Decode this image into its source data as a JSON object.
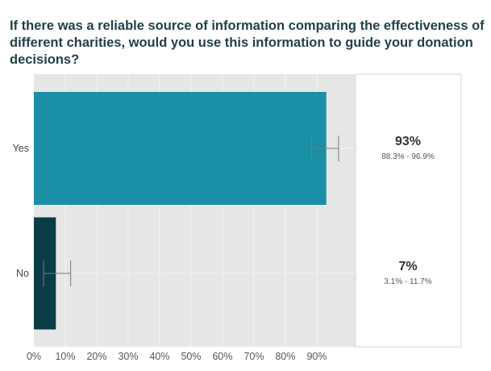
{
  "chart_data": {
    "type": "bar",
    "orientation": "horizontal",
    "title": "If there was a reliable source of information comparing the effectiveness of different charities, would you use this information to guide your donation decisions?",
    "xlabel": "",
    "ylabel": "",
    "xlim": [
      0,
      100
    ],
    "grid": true,
    "categories": [
      "Yes",
      "No"
    ],
    "values": [
      93,
      7
    ],
    "ci_low": [
      88.3,
      3.1
    ],
    "ci_high": [
      96.9,
      11.7
    ],
    "value_labels": [
      "93%",
      "7%"
    ],
    "ci_labels": [
      "88.3% - 96.9%",
      "3.1% - 11.7%"
    ],
    "bar_colors": [
      "#1a8fa6",
      "#0b3c47"
    ],
    "x_ticks": [
      0,
      10,
      20,
      30,
      40,
      50,
      60,
      70,
      80,
      90
    ],
    "x_tick_labels": [
      "0%",
      "10%",
      "20%",
      "30%",
      "40%",
      "50%",
      "60%",
      "70%",
      "80%",
      "90%"
    ]
  }
}
